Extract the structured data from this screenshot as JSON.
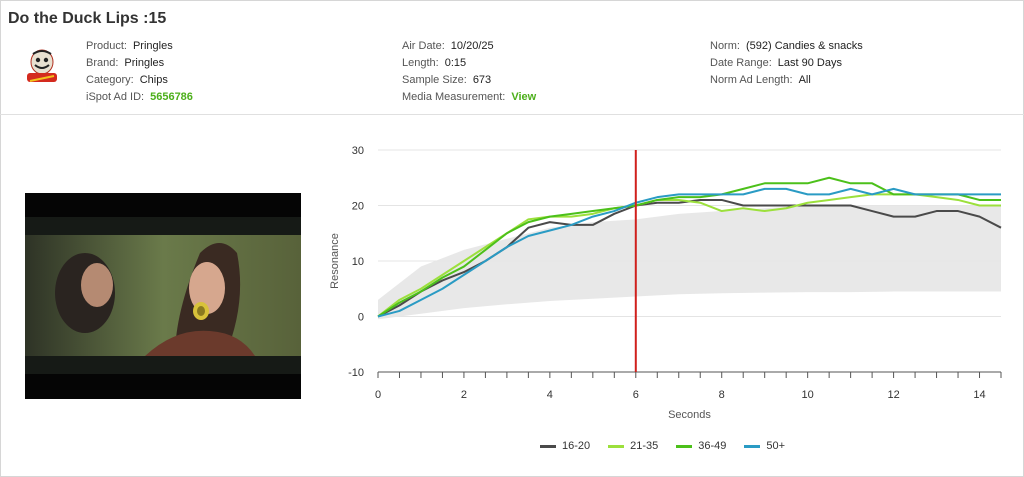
{
  "ad": {
    "title": "Do the Duck Lips :15"
  },
  "info": {
    "col1": [
      {
        "label": "Product:",
        "value": "Pringles"
      },
      {
        "label": "Brand:",
        "value": "Pringles"
      },
      {
        "label": "Category:",
        "value": "Chips"
      },
      {
        "label": "iSpot Ad ID:",
        "value": "5656786"
      }
    ],
    "col2": [
      {
        "label": "Air Date:",
        "value": "10/20/25"
      },
      {
        "label": "Length:",
        "value": "0:15"
      },
      {
        "label": "Sample Size:",
        "value": "673"
      },
      {
        "label": "Media Measurement:",
        "value": "View"
      }
    ],
    "col3": [
      {
        "label": "Norm:",
        "value": "(592) Candies & snacks"
      },
      {
        "label": "Date Range:",
        "value": "Last 90 Days"
      },
      {
        "label": "Norm Ad Length:",
        "value": "All"
      }
    ]
  },
  "logo_icon": "pringles-logo-icon",
  "colors": {
    "16-20": "#4a4a4a",
    "21-35": "#9ce03c",
    "36-49": "#4cc01a",
    "50+": "#2a9bc4",
    "marker": "#d0201c",
    "band": "#e6e6e6"
  },
  "chart_data": {
    "type": "line",
    "xlabel": "Seconds",
    "ylabel": "Resonance",
    "xlim": [
      0,
      14.5
    ],
    "ylim": [
      -10,
      30
    ],
    "xticks": [
      0,
      2,
      4,
      6,
      8,
      10,
      12,
      14
    ],
    "yticks": [
      -10,
      0,
      10,
      20,
      30
    ],
    "grid": true,
    "legend": "bottom",
    "marker_x": 6,
    "norm_band": {
      "x": [
        0,
        1,
        2,
        3,
        4,
        5,
        6,
        7,
        8,
        9,
        10,
        11,
        12,
        13,
        14,
        14.5
      ],
      "upper": [
        3,
        9,
        12,
        14,
        16,
        17,
        17.5,
        18.5,
        19,
        19.5,
        20,
        20,
        20,
        20,
        20,
        20
      ],
      "lower": [
        -0.5,
        0.5,
        1.5,
        2.2,
        2.8,
        3.2,
        3.6,
        4,
        4.2,
        4.3,
        4.4,
        4.4,
        4.5,
        4.5,
        4.5,
        4.5
      ]
    },
    "x": [
      0,
      0.5,
      1,
      1.5,
      2,
      2.5,
      3,
      3.5,
      4,
      4.5,
      5,
      5.5,
      6,
      6.5,
      7,
      7.5,
      8,
      8.5,
      9,
      9.5,
      10,
      10.5,
      11,
      11.5,
      12,
      12.5,
      13,
      13.5,
      14,
      14.5
    ],
    "series": [
      {
        "name": "16-20",
        "values": [
          0,
          2,
          4.5,
          6.5,
          8,
          10,
          12.5,
          16,
          17,
          16.5,
          16.5,
          18.5,
          20,
          20.5,
          20.5,
          21,
          21,
          20,
          20,
          20,
          20,
          20,
          20,
          19,
          18,
          18,
          19,
          19,
          18,
          16
        ]
      },
      {
        "name": "21-35",
        "values": [
          0,
          3,
          5,
          7.5,
          10,
          12.5,
          15,
          17.5,
          18,
          18,
          18.5,
          19.5,
          20,
          21,
          21,
          20.5,
          19,
          19.5,
          19,
          19.5,
          20.5,
          21,
          21.5,
          22,
          22,
          22,
          21.5,
          21,
          20,
          20
        ]
      },
      {
        "name": "36-49",
        "values": [
          0,
          2.5,
          4.5,
          7,
          9,
          12,
          15,
          17,
          18,
          18.5,
          19,
          19.5,
          20,
          21,
          21.5,
          21.5,
          22,
          23,
          24,
          24,
          24,
          25,
          24,
          24,
          22,
          22,
          22,
          22,
          21,
          21
        ]
      },
      {
        "name": "50+",
        "values": [
          0,
          1,
          3,
          5,
          7.5,
          10,
          12.5,
          14.5,
          15.5,
          16.5,
          18,
          19,
          20.5,
          21.5,
          22,
          22,
          22,
          22,
          23,
          23,
          22,
          22,
          23,
          22,
          23,
          22,
          22,
          22,
          22,
          22
        ]
      }
    ]
  },
  "legend": [
    "16-20",
    "21-35",
    "36-49",
    "50+"
  ]
}
